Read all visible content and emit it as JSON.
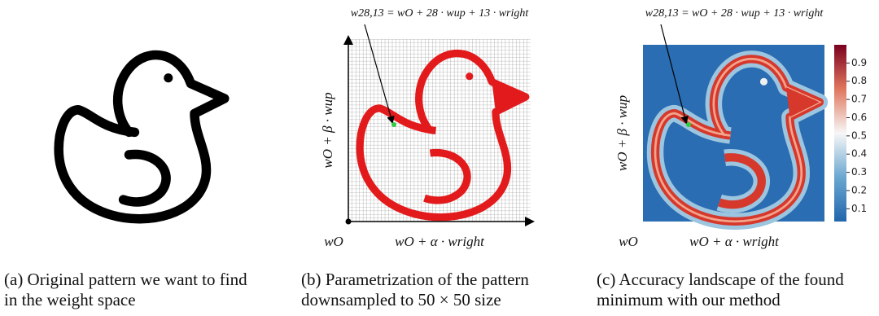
{
  "panels": [
    {
      "caption": [
        "(a) Original pattern we want to find",
        "in the weight space"
      ]
    },
    {
      "annotation": "w28,13 = wO + 28 · wup + 13 · wright",
      "x_label": "wO + α · wright",
      "y_label": "wO + β · wup",
      "origin_label": "wO",
      "caption": [
        "(b) Parametrization of the pattern",
        "downsampled to 50 × 50 size"
      ]
    },
    {
      "annotation": "w28,13 = wO + 28 · wup + 13 · wright",
      "x_label": "wO + α · wright",
      "y_label": "wO + β · wup",
      "origin_label": "wO",
      "caption": [
        "(c) Accuracy landscape of the found",
        "minimum with our method"
      ],
      "colorbar": {
        "range": [
          0.03,
          1.0
        ],
        "ticks": [
          0.1,
          0.2,
          0.3,
          0.4,
          0.5,
          0.6,
          0.7,
          0.8,
          0.9
        ]
      }
    }
  ]
}
